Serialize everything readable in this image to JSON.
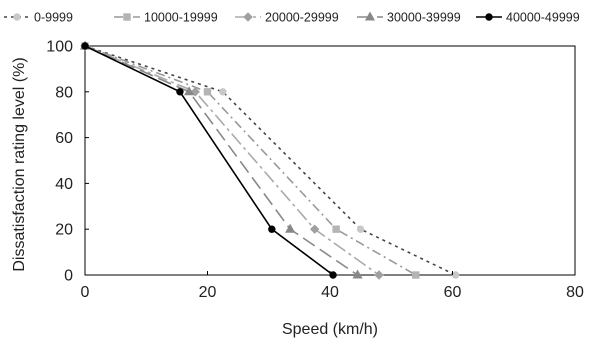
{
  "chart_data": {
    "type": "line",
    "title": "",
    "xlabel": "Speed (km/h)",
    "ylabel": "Dissatisfaction rating level (%)",
    "xlim": [
      0,
      80
    ],
    "ylim": [
      0,
      100
    ],
    "xticks": [
      0,
      20,
      40,
      60,
      80
    ],
    "yticks": [
      0,
      20,
      40,
      60,
      80,
      100
    ],
    "grid": false,
    "legend": "top",
    "series": [
      {
        "name": "0-9999",
        "color": "#c8c8c8",
        "line_color": "#444444",
        "dash": "dot",
        "marker": "circle",
        "x": [
          0,
          22.5,
          45,
          60.5
        ],
        "y": [
          100,
          80,
          20,
          0
        ]
      },
      {
        "name": "10000-19999",
        "color": "#b4b4b4",
        "line_color": "#999999",
        "dash": "dash-dot",
        "marker": "square",
        "x": [
          0,
          20,
          41,
          54
        ],
        "y": [
          100,
          80,
          20,
          0
        ]
      },
      {
        "name": "20000-29999",
        "color": "#a0a0a0",
        "line_color": "#aaaaaa",
        "dash": "long-dash-dot",
        "marker": "diamond",
        "x": [
          0,
          18,
          37.5,
          48
        ],
        "y": [
          100,
          80,
          20,
          0
        ]
      },
      {
        "name": "30000-39999",
        "color": "#888888",
        "line_color": "#888888",
        "dash": "long-dash",
        "marker": "triangle",
        "x": [
          0,
          17,
          33.5,
          44.5
        ],
        "y": [
          100,
          80,
          20,
          0
        ]
      },
      {
        "name": "40000-49999",
        "color": "#000000",
        "line_color": "#000000",
        "dash": "solid",
        "marker": "circle",
        "x": [
          0,
          15.5,
          30.5,
          40.5
        ],
        "y": [
          100,
          80,
          20,
          0
        ]
      }
    ]
  }
}
